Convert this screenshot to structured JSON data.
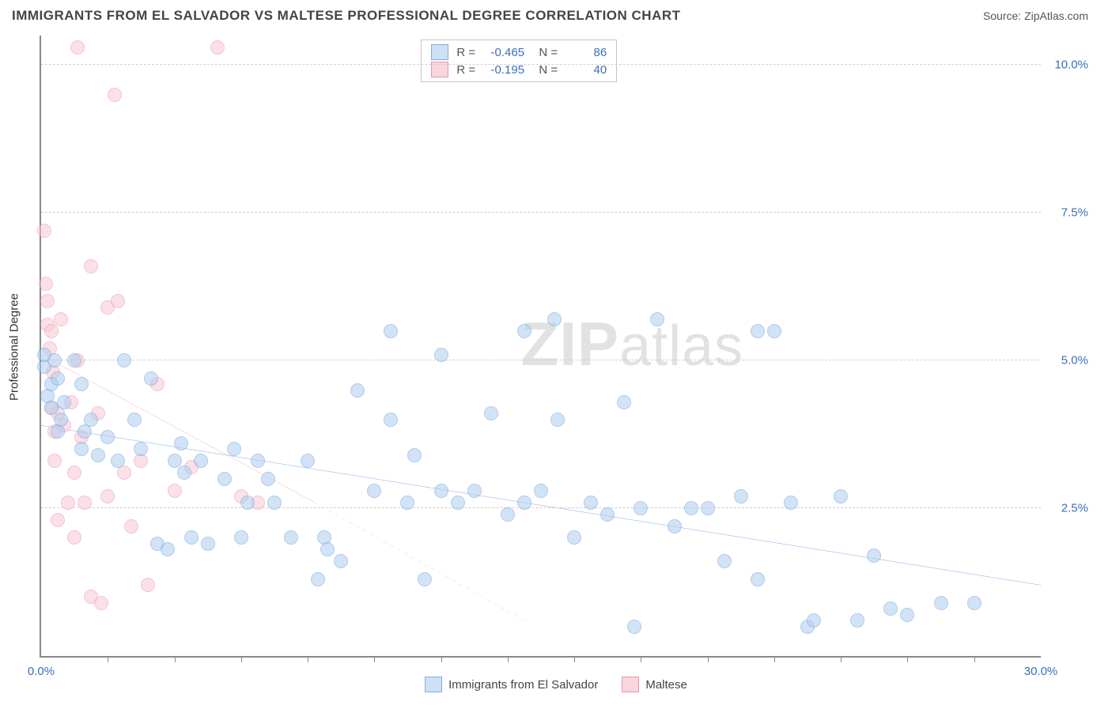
{
  "header": {
    "title": "IMMIGRANTS FROM EL SALVADOR VS MALTESE PROFESSIONAL DEGREE CORRELATION CHART",
    "source_prefix": "Source: ",
    "source_name": "ZipAtlas.com"
  },
  "watermark": {
    "zip": "ZIP",
    "atlas": "atlas"
  },
  "chart": {
    "type": "scatter",
    "ylabel": "Professional Degree",
    "xlim": [
      0,
      30
    ],
    "ylim": [
      0,
      10.5
    ],
    "xticks": [
      2,
      4,
      6,
      8,
      10,
      12,
      14,
      16,
      18,
      20,
      22,
      24,
      26,
      28
    ],
    "xtick_labels": {
      "0": "0.0%",
      "30": "30.0%"
    },
    "yticks": [
      2.5,
      5.0,
      7.5,
      10.0
    ],
    "ytick_labels": [
      "2.5%",
      "5.0%",
      "7.5%",
      "10.0%"
    ],
    "grid_color": "#d0d0d0",
    "axis_color": "#888888",
    "series": {
      "el_salvador": {
        "label": "Immigrants from El Salvador",
        "fill": "#aecdf0",
        "stroke": "#6fa3de",
        "R": "-0.465",
        "N": "86",
        "regression": {
          "x1": 0,
          "y1": 3.9,
          "x2": 30,
          "y2": 1.2,
          "color": "#2f6fcf",
          "width": 2.5,
          "dash": "none"
        },
        "points": [
          [
            0.1,
            4.9
          ],
          [
            0.1,
            5.1
          ],
          [
            0.2,
            4.4
          ],
          [
            0.3,
            4.6
          ],
          [
            0.3,
            4.2
          ],
          [
            0.5,
            3.8
          ],
          [
            0.5,
            4.7
          ],
          [
            0.6,
            4.0
          ],
          [
            0.7,
            4.3
          ],
          [
            0.4,
            5.0
          ],
          [
            1.0,
            5.0
          ],
          [
            1.2,
            4.6
          ],
          [
            1.2,
            3.5
          ],
          [
            1.3,
            3.8
          ],
          [
            1.5,
            4.0
          ],
          [
            1.7,
            3.4
          ],
          [
            2.0,
            3.7
          ],
          [
            2.3,
            3.3
          ],
          [
            2.5,
            5.0
          ],
          [
            2.8,
            4.0
          ],
          [
            3.0,
            3.5
          ],
          [
            3.3,
            4.7
          ],
          [
            3.5,
            1.9
          ],
          [
            3.8,
            1.8
          ],
          [
            4.0,
            3.3
          ],
          [
            4.2,
            3.6
          ],
          [
            4.5,
            2.0
          ],
          [
            4.8,
            3.3
          ],
          [
            5.0,
            1.9
          ],
          [
            5.5,
            3.0
          ],
          [
            5.8,
            3.5
          ],
          [
            6.0,
            2.0
          ],
          [
            6.2,
            2.6
          ],
          [
            6.5,
            3.3
          ],
          [
            7.0,
            2.6
          ],
          [
            7.5,
            2.0
          ],
          [
            8.0,
            3.3
          ],
          [
            8.3,
            1.3
          ],
          [
            8.5,
            2.0
          ],
          [
            8.6,
            1.8
          ],
          [
            9.0,
            1.6
          ],
          [
            9.5,
            4.5
          ],
          [
            10.0,
            2.8
          ],
          [
            10.5,
            4.0
          ],
          [
            10.5,
            5.5
          ],
          [
            11.0,
            2.6
          ],
          [
            11.2,
            3.4
          ],
          [
            11.5,
            1.3
          ],
          [
            12.0,
            2.8
          ],
          [
            12.5,
            2.6
          ],
          [
            13.0,
            2.8
          ],
          [
            12.0,
            5.1
          ],
          [
            13.5,
            4.1
          ],
          [
            14.0,
            2.4
          ],
          [
            14.5,
            2.6
          ],
          [
            14.5,
            5.5
          ],
          [
            15.0,
            2.8
          ],
          [
            15.5,
            4.0
          ],
          [
            16.0,
            2.0
          ],
          [
            16.5,
            2.6
          ],
          [
            17.0,
            2.4
          ],
          [
            17.8,
            0.5
          ],
          [
            18.0,
            2.5
          ],
          [
            17.5,
            4.3
          ],
          [
            18.5,
            5.7
          ],
          [
            19.0,
            2.2
          ],
          [
            19.5,
            2.5
          ],
          [
            20.0,
            2.5
          ],
          [
            20.5,
            1.6
          ],
          [
            21.0,
            2.7
          ],
          [
            21.5,
            1.3
          ],
          [
            22.0,
            5.5
          ],
          [
            22.5,
            2.6
          ],
          [
            23.0,
            0.5
          ],
          [
            23.2,
            0.6
          ],
          [
            24.0,
            2.7
          ],
          [
            24.5,
            0.6
          ],
          [
            25.0,
            1.7
          ],
          [
            25.5,
            0.8
          ],
          [
            26.0,
            0.7
          ],
          [
            27.0,
            0.9
          ],
          [
            28.0,
            0.9
          ],
          [
            21.5,
            5.5
          ],
          [
            15.4,
            5.7
          ],
          [
            6.8,
            3.0
          ],
          [
            4.3,
            3.1
          ]
        ]
      },
      "maltese": {
        "label": "Maltese",
        "fill": "#f9c9d4",
        "stroke": "#ed94ab",
        "R": "-0.195",
        "N": "40",
        "regression_solid": {
          "x1": 0,
          "y1": 5.1,
          "x2": 8.2,
          "y2": 2.6,
          "color": "#e85c82",
          "width": 2,
          "dash": "none"
        },
        "regression_dash": {
          "x1": 8.2,
          "y1": 2.6,
          "x2": 14.5,
          "y2": 0.6,
          "color": "#e85c82",
          "width": 1.5,
          "dash": "5,5"
        },
        "points": [
          [
            0.1,
            7.2
          ],
          [
            0.15,
            6.3
          ],
          [
            0.2,
            6.0
          ],
          [
            0.2,
            5.6
          ],
          [
            0.25,
            5.2
          ],
          [
            0.3,
            5.5
          ],
          [
            0.3,
            4.2
          ],
          [
            0.35,
            4.8
          ],
          [
            0.4,
            3.8
          ],
          [
            0.4,
            3.3
          ],
          [
            0.5,
            4.1
          ],
          [
            0.5,
            2.3
          ],
          [
            0.6,
            5.7
          ],
          [
            0.7,
            3.9
          ],
          [
            0.8,
            2.6
          ],
          [
            0.9,
            4.3
          ],
          [
            1.0,
            3.1
          ],
          [
            1.0,
            2.0
          ],
          [
            1.1,
            5.0
          ],
          [
            1.2,
            3.7
          ],
          [
            1.3,
            2.6
          ],
          [
            1.5,
            6.6
          ],
          [
            1.5,
            1.0
          ],
          [
            1.7,
            4.1
          ],
          [
            1.8,
            0.9
          ],
          [
            2.0,
            5.9
          ],
          [
            2.0,
            2.7
          ],
          [
            2.2,
            9.5
          ],
          [
            2.3,
            6.0
          ],
          [
            2.5,
            3.1
          ],
          [
            2.7,
            2.2
          ],
          [
            3.0,
            3.3
          ],
          [
            3.2,
            1.2
          ],
          [
            3.5,
            4.6
          ],
          [
            4.0,
            2.8
          ],
          [
            4.5,
            3.2
          ],
          [
            5.3,
            10.3
          ],
          [
            6.0,
            2.7
          ],
          [
            6.5,
            2.6
          ],
          [
            1.1,
            10.3
          ]
        ]
      }
    }
  },
  "bottom_legend": [
    {
      "swatch": "blue",
      "label_key": "chart.series.el_salvador.label"
    },
    {
      "swatch": "pink",
      "label_key": "chart.series.maltese.label"
    }
  ]
}
